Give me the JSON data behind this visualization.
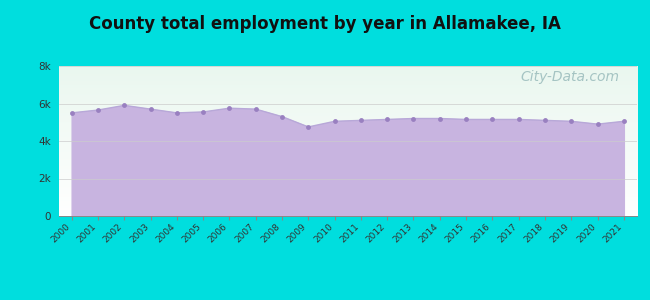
{
  "title": "County total employment by year in Allamakee, IA",
  "years": [
    2000,
    2001,
    2002,
    2003,
    2004,
    2005,
    2006,
    2007,
    2008,
    2009,
    2010,
    2011,
    2012,
    2013,
    2014,
    2015,
    2016,
    2017,
    2018,
    2019,
    2020,
    2021
  ],
  "values": [
    5500,
    5650,
    5900,
    5700,
    5500,
    5550,
    5750,
    5700,
    5300,
    4750,
    5050,
    5100,
    5150,
    5200,
    5200,
    5150,
    5150,
    5150,
    5100,
    5050,
    4900,
    5050
  ],
  "ylim": [
    0,
    8000
  ],
  "yticks": [
    0,
    2000,
    4000,
    6000,
    8000
  ],
  "ytick_labels": [
    "0",
    "2k",
    "4k",
    "6k",
    "8k"
  ],
  "line_color": "#b8a8d8",
  "fill_color": "#c8b4e0",
  "fill_alpha": 1.0,
  "marker_color": "#9980c0",
  "marker_size": 3.5,
  "background_outer": "#00dede",
  "background_plot": "#f0faf4",
  "title_fontsize": 12,
  "title_fontweight": "bold",
  "watermark_text": "City-Data.com",
  "watermark_color": "#99bbbb",
  "watermark_fontsize": 10
}
